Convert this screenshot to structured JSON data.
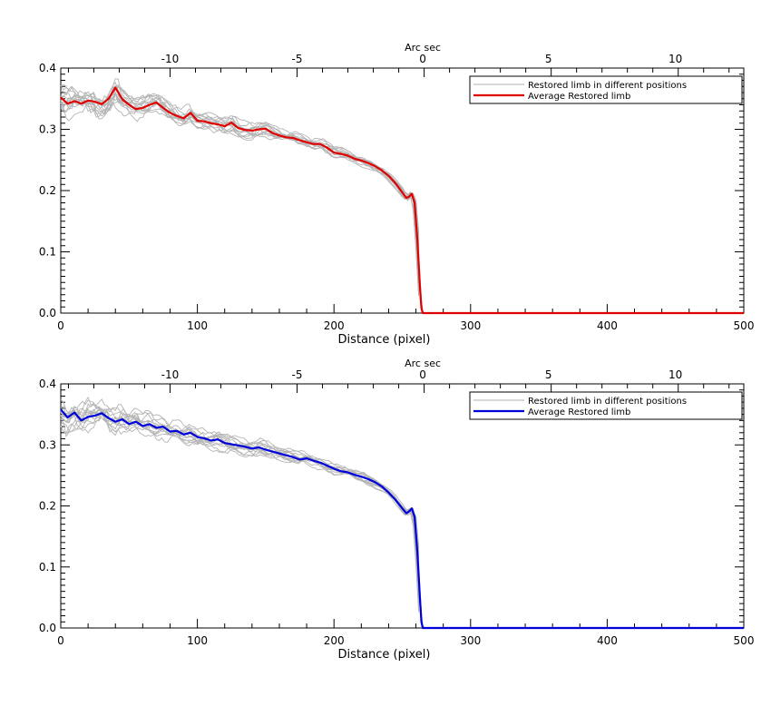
{
  "chart_data": [
    {
      "type": "line",
      "xlabel": "Distance (pixel)",
      "x2label": "Arc sec",
      "xlim": [
        0,
        500
      ],
      "ylim": [
        0.0,
        0.4
      ],
      "xticks": [
        0,
        100,
        200,
        300,
        400,
        500
      ],
      "yticks": [
        0.0,
        0.1,
        0.2,
        0.3,
        0.4
      ],
      "x2_ticks": [
        {
          "label": "-10",
          "x": 80
        },
        {
          "label": "-5",
          "x": 173
        },
        {
          "label": "0",
          "x": 265
        },
        {
          "label": "5",
          "x": 357
        },
        {
          "label": "10",
          "x": 450
        }
      ],
      "legend": {
        "position": "top-right",
        "entries": [
          {
            "label": "Restored limb in different positions",
            "color": "#b0b0b0"
          },
          {
            "label": "Average Restored limb",
            "color": "#e00000"
          }
        ]
      },
      "series": [
        {
          "name": "Average Restored limb",
          "color": "#e00000",
          "x": [
            0,
            5,
            10,
            15,
            20,
            25,
            30,
            35,
            40,
            45,
            50,
            55,
            60,
            65,
            70,
            75,
            80,
            85,
            90,
            95,
            100,
            105,
            110,
            115,
            120,
            125,
            130,
            135,
            140,
            145,
            150,
            155,
            160,
            165,
            170,
            175,
            180,
            185,
            190,
            195,
            200,
            205,
            210,
            215,
            220,
            225,
            230,
            235,
            240,
            245,
            250,
            253,
            255,
            257,
            259,
            261,
            263,
            264,
            265,
            266,
            270,
            300,
            400,
            500
          ],
          "y": [
            0.352,
            0.342,
            0.346,
            0.342,
            0.347,
            0.345,
            0.341,
            0.35,
            0.368,
            0.349,
            0.34,
            0.333,
            0.335,
            0.34,
            0.344,
            0.335,
            0.327,
            0.322,
            0.318,
            0.327,
            0.314,
            0.313,
            0.31,
            0.308,
            0.305,
            0.311,
            0.302,
            0.299,
            0.298,
            0.3,
            0.301,
            0.294,
            0.29,
            0.287,
            0.286,
            0.282,
            0.279,
            0.276,
            0.276,
            0.27,
            0.262,
            0.26,
            0.257,
            0.252,
            0.249,
            0.245,
            0.24,
            0.233,
            0.224,
            0.212,
            0.197,
            0.188,
            0.19,
            0.195,
            0.18,
            0.12,
            0.04,
            0.008,
            0.0,
            0.0,
            0.0,
            0.0,
            0.0,
            0.0
          ]
        }
      ]
    },
    {
      "type": "line",
      "xlabel": "Distance (pixel)",
      "x2label": "Arc sec",
      "xlim": [
        0,
        500
      ],
      "ylim": [
        0.0,
        0.4
      ],
      "xticks": [
        0,
        100,
        200,
        300,
        400,
        500
      ],
      "yticks": [
        0.0,
        0.1,
        0.2,
        0.3,
        0.4
      ],
      "x2_ticks": [
        {
          "label": "-10",
          "x": 80
        },
        {
          "label": "-5",
          "x": 173
        },
        {
          "label": "0",
          "x": 265
        },
        {
          "label": "5",
          "x": 357
        },
        {
          "label": "10",
          "x": 450
        }
      ],
      "legend": {
        "position": "top-right",
        "entries": [
          {
            "label": "Restored limb in different positions",
            "color": "#b0b0b0"
          },
          {
            "label": "Average Restored limb",
            "color": "#0000dd"
          }
        ]
      },
      "series": [
        {
          "name": "Average Restored limb",
          "color": "#0000dd",
          "x": [
            0,
            5,
            10,
            15,
            20,
            25,
            30,
            35,
            40,
            45,
            50,
            55,
            60,
            65,
            70,
            75,
            80,
            85,
            90,
            95,
            100,
            105,
            110,
            115,
            120,
            125,
            130,
            135,
            140,
            145,
            150,
            155,
            160,
            165,
            170,
            175,
            180,
            185,
            190,
            195,
            200,
            205,
            210,
            215,
            220,
            225,
            230,
            235,
            240,
            245,
            250,
            253,
            255,
            257,
            259,
            261,
            263,
            264,
            265,
            266,
            270,
            300,
            400,
            500
          ],
          "y": [
            0.358,
            0.345,
            0.353,
            0.34,
            0.346,
            0.348,
            0.352,
            0.344,
            0.338,
            0.342,
            0.334,
            0.338,
            0.331,
            0.334,
            0.328,
            0.33,
            0.322,
            0.323,
            0.317,
            0.32,
            0.313,
            0.311,
            0.307,
            0.309,
            0.303,
            0.301,
            0.299,
            0.297,
            0.294,
            0.296,
            0.292,
            0.289,
            0.286,
            0.283,
            0.28,
            0.276,
            0.278,
            0.274,
            0.271,
            0.266,
            0.261,
            0.257,
            0.255,
            0.251,
            0.248,
            0.244,
            0.239,
            0.232,
            0.222,
            0.21,
            0.196,
            0.188,
            0.191,
            0.196,
            0.182,
            0.125,
            0.045,
            0.01,
            0.0,
            0.0,
            0.0,
            0.0,
            0.0,
            0.0
          ]
        }
      ]
    }
  ]
}
